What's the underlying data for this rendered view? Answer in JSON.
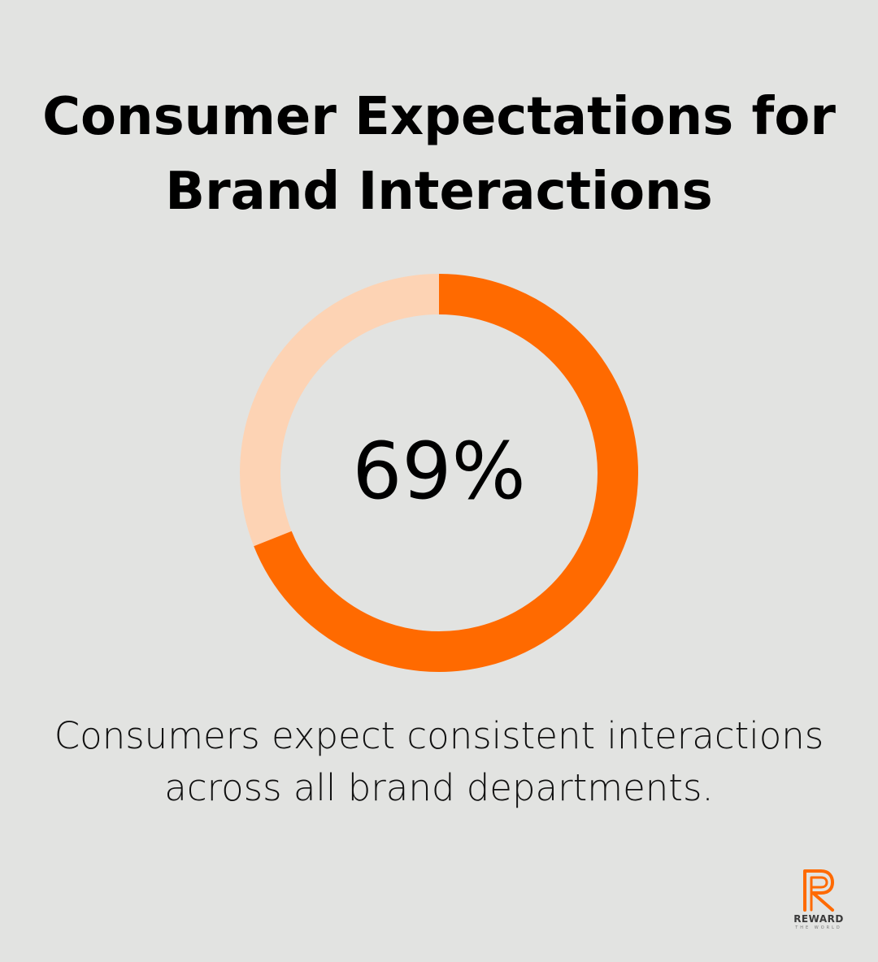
{
  "title": {
    "line1": "Consumer Expectations for",
    "line2": "Brand Interactions"
  },
  "caption": {
    "line1": "Consumers expect consistent interactions",
    "line2": "across all brand departments."
  },
  "colors": {
    "background": "#e2e3e1",
    "accent": "#ff6a00",
    "track": "#fdd3b4"
  },
  "logo": {
    "icon": "reward-r-logo-icon",
    "wordmark": "REWARD",
    "tagline": "THE WORLD"
  },
  "chart_data": {
    "type": "pie",
    "style": "donut",
    "values": [
      69,
      31
    ],
    "center_label": "69%",
    "max": 100
  }
}
